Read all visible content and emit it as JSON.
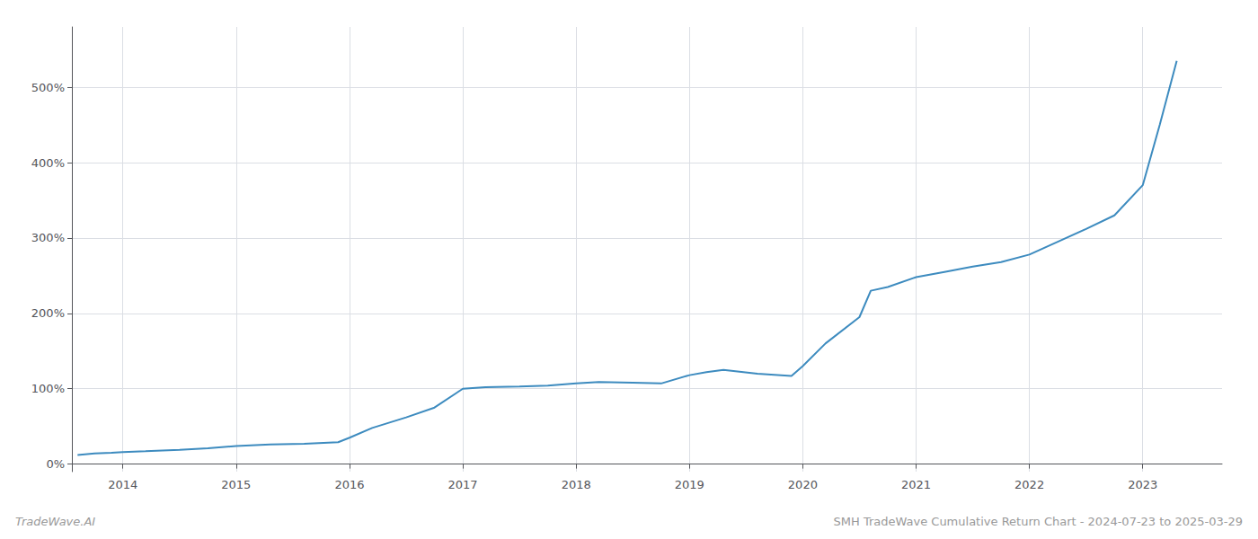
{
  "chart_data": {
    "type": "line",
    "title": "SMH TradeWave Cumulative Return Chart - 2024-07-23 to 2025-03-29",
    "annotations": [
      "TradeWave.AI"
    ],
    "color": "#3d8bbf",
    "grid": true,
    "x": [
      2013.6,
      2013.75,
      2013.9,
      2014.0,
      2014.2,
      2014.5,
      2014.75,
      2015.0,
      2015.3,
      2015.6,
      2015.9,
      2016.0,
      2016.2,
      2016.5,
      2016.75,
      2017.0,
      2017.2,
      2017.5,
      2017.75,
      2018.0,
      2018.2,
      2018.5,
      2018.75,
      2019.0,
      2019.15,
      2019.3,
      2019.6,
      2019.9,
      2020.0,
      2020.2,
      2020.5,
      2020.6,
      2020.75,
      2021.0,
      2021.25,
      2021.5,
      2021.75,
      2022.0,
      2022.25,
      2022.5,
      2022.75,
      2023.0,
      2023.15,
      2023.3
    ],
    "values": [
      12,
      14,
      15,
      16,
      17,
      19,
      21,
      24,
      26,
      27,
      29,
      35,
      48,
      62,
      75,
      100,
      102,
      103,
      104,
      107,
      109,
      108,
      107,
      118,
      122,
      125,
      120,
      117,
      130,
      160,
      195,
      230,
      235,
      248,
      255,
      262,
      268,
      278,
      295,
      312,
      330,
      370,
      450,
      535
    ],
    "xlim": [
      2013.55,
      2023.7
    ],
    "xticks": [
      2014,
      2015,
      2016,
      2017,
      2018,
      2019,
      2020,
      2021,
      2022,
      2023
    ],
    "ylim": [
      -10,
      580
    ],
    "yticks": [
      {
        "value": 0,
        "label": "0%"
      },
      {
        "value": 100,
        "label": "100%"
      },
      {
        "value": 200,
        "label": "200%"
      },
      {
        "value": 300,
        "label": "300%"
      },
      {
        "value": 400,
        "label": "400%"
      },
      {
        "value": 500,
        "label": "500%"
      }
    ]
  }
}
